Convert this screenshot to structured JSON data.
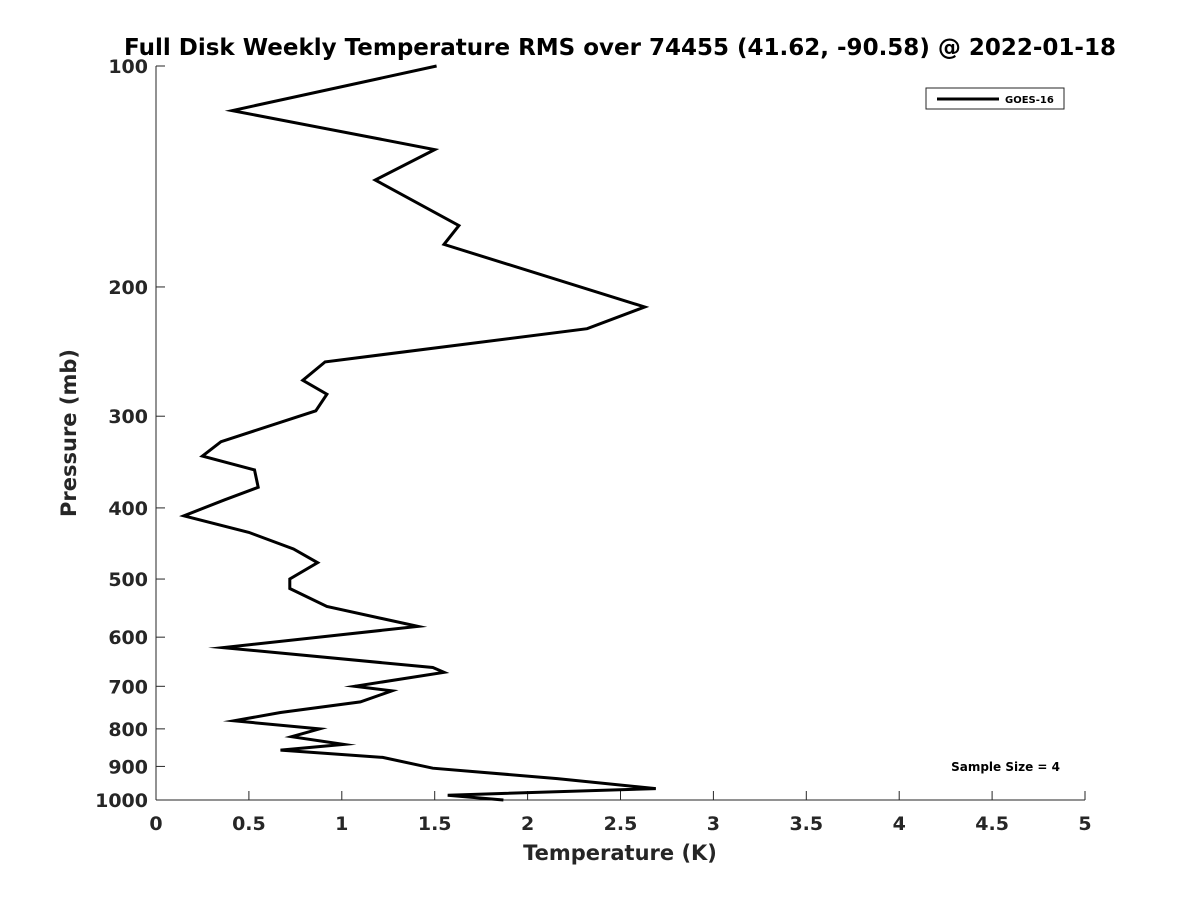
{
  "chart_data": {
    "type": "line",
    "title": "Full Disk Weekly Temperature RMS over 74455 (41.62, -90.58) @ 2022-01-18",
    "xlabel": "Temperature (K)",
    "ylabel": "Pressure (mb)",
    "xlim": [
      0,
      5
    ],
    "ylim": [
      100,
      1000
    ],
    "yscale": "log",
    "y_reversed": true,
    "x_ticks": [
      "0",
      "0.5",
      "1",
      "1.5",
      "2",
      "2.5",
      "3",
      "3.5",
      "4",
      "4.5",
      "5"
    ],
    "y_ticks": [
      "100",
      "200",
      "300",
      "400",
      "500",
      "600",
      "700",
      "800",
      "900",
      "1000"
    ],
    "grid": false,
    "legend": {
      "position": "top-right",
      "entries": [
        "GOES-16"
      ]
    },
    "annotation": "Sample Size = 4",
    "line_color": "#000000",
    "series": [
      {
        "name": "GOES-16",
        "x": [
          1.51,
          0.41,
          1.5,
          1.18,
          1.63,
          1.55,
          2.63,
          2.32,
          0.91,
          0.79,
          0.92,
          0.86,
          0.35,
          0.25,
          0.53,
          0.55,
          0.37,
          0.15,
          0.5,
          0.74,
          0.87,
          0.72,
          0.72,
          0.92,
          1.41,
          0.36,
          1.49,
          1.55,
          1.07,
          1.27,
          1.1,
          0.67,
          0.42,
          0.88,
          0.73,
          1.01,
          0.67,
          1.22,
          1.49,
          2.16,
          2.69,
          1.57,
          1.87
        ],
        "y": [
          100,
          115,
          130,
          143,
          165,
          175,
          213,
          228,
          253,
          268,
          280,
          295,
          325,
          340,
          355,
          375,
          390,
          410,
          432,
          455,
          475,
          500,
          515,
          545,
          580,
          620,
          660,
          670,
          700,
          710,
          735,
          760,
          780,
          800,
          820,
          840,
          855,
          875,
          905,
          935,
          965,
          985,
          1000
        ]
      }
    ]
  }
}
